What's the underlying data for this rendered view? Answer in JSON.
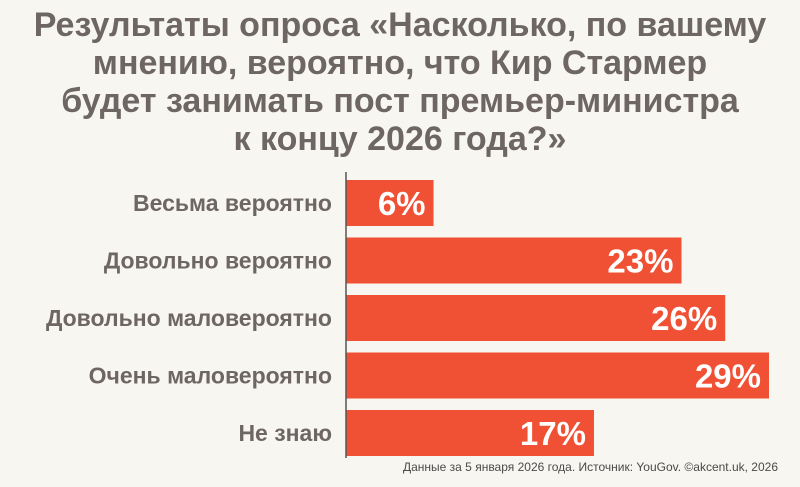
{
  "title_lines": [
    "Результаты опроса «Насколько, по вашему",
    "мнению, вероятно, что Кир Стармер",
    "будет занимать пост премьер-министра",
    "к концу 2026 года?»"
  ],
  "source": "Данные за 5 января 2026 года. Источник: YouGov. ©akcent.uk, 2026",
  "colors": {
    "bar": "#f05033",
    "label": "#6e6660",
    "value": "#ffffff",
    "axis": "#555555"
  },
  "chart_data": {
    "type": "bar",
    "orientation": "horizontal",
    "categories": [
      "Весьма вероятно",
      "Довольно вероятно",
      "Довольно маловероятно",
      "Очень маловероятно",
      "Не знаю"
    ],
    "values": [
      6,
      23,
      26,
      29,
      17
    ],
    "value_labels": [
      "6%",
      "23%",
      "26%",
      "29%",
      "17%"
    ],
    "unit": "%",
    "xlim": [
      0,
      29
    ]
  }
}
